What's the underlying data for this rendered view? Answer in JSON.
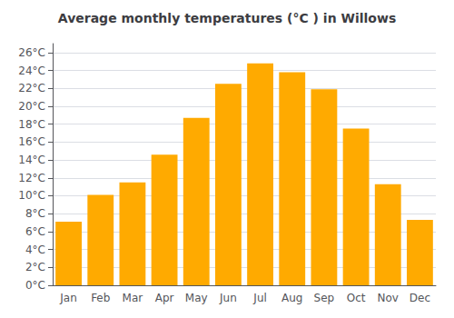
{
  "chart_data": {
    "type": "bar",
    "title": "Average monthly temperatures (°C ) in Willows",
    "categories": [
      "Jan",
      "Feb",
      "Mar",
      "Apr",
      "May",
      "Jun",
      "Jul",
      "Aug",
      "Sep",
      "Oct",
      "Nov",
      "Dec"
    ],
    "values": [
      7.1,
      10.1,
      11.5,
      14.6,
      18.7,
      22.5,
      24.8,
      23.8,
      21.9,
      17.5,
      11.3,
      7.3
    ],
    "color": "#FFAA00",
    "ylim": [
      0,
      27
    ],
    "yticks": [
      {
        "value": 0,
        "label": "0°C"
      },
      {
        "value": 2,
        "label": "2°C"
      },
      {
        "value": 4,
        "label": "4°C"
      },
      {
        "value": 6,
        "label": "6°C"
      },
      {
        "value": 8,
        "label": "8°C"
      },
      {
        "value": 10,
        "label": "10°C"
      },
      {
        "value": 12,
        "label": "12°C"
      },
      {
        "value": 14,
        "label": "14°C"
      },
      {
        "value": 16,
        "label": "16°C"
      },
      {
        "value": 18,
        "label": "18°C"
      },
      {
        "value": 20,
        "label": "20°C"
      },
      {
        "value": 22,
        "label": "22°C"
      },
      {
        "value": 24,
        "label": "24°C"
      },
      {
        "value": 26,
        "label": "26°C"
      }
    ],
    "grid": true
  }
}
